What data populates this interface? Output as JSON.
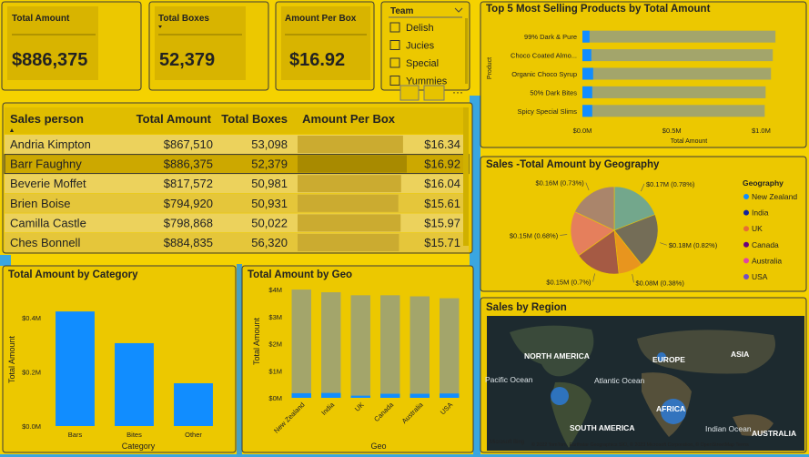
{
  "cards": [
    {
      "label": "Total Amount",
      "value": "$886,375"
    },
    {
      "label": "Total Boxes",
      "value": "52,379"
    },
    {
      "label": "Amount Per Box",
      "value": "$16.92"
    }
  ],
  "slicer": {
    "title": "Team",
    "items": [
      "Delish",
      "Jucies",
      "Special",
      "Yummies"
    ]
  },
  "table": {
    "columns": [
      "Sales person",
      "Total Amount",
      "Total Boxes",
      "Amount Per Box"
    ],
    "rows": [
      [
        "Andria Kimpton",
        "$867,510",
        "53,098",
        "$16.34"
      ],
      [
        "Barr Faughny",
        "$886,375",
        "52,379",
        "$16.92"
      ],
      [
        "Beverie Moffet",
        "$817,572",
        "50,981",
        "$16.04"
      ],
      [
        "Brien Boise",
        "$794,920",
        "50,931",
        "$15.61"
      ],
      [
        "Camilla Castle",
        "$798,868",
        "50,022",
        "$15.97"
      ],
      [
        "Ches Bonnell",
        "$884,835",
        "56,320",
        "$15.71"
      ]
    ],
    "selected_row": 1
  },
  "chart_data": [
    {
      "type": "bar",
      "horizontal": true,
      "title": "Top 5 Most Selling Products by Total Amount",
      "categories": [
        "99% Dark & Pure",
        "Choco Coated Almo...",
        "Organic Choco Syrup",
        "50% Dark Bites",
        "Spicy Special Slims"
      ],
      "series": [
        {
          "color": "#a3a56b",
          "values": [
            1080000,
            1065000,
            1055000,
            1025000,
            1020000
          ]
        },
        {
          "color": "#118dff",
          "values": [
            40000,
            50000,
            60000,
            55000,
            55000
          ]
        }
      ],
      "xlim": [
        0,
        1120000
      ],
      "xticks": [
        {
          "value": 0,
          "label": "$0.0M"
        },
        {
          "value": 500000,
          "label": "$0.5M"
        },
        {
          "value": 1000000,
          "label": "$1.0M"
        }
      ],
      "xlabel": "Total Amount",
      "ylabel": "Product"
    },
    {
      "type": "pie",
      "title": "Sales -Total Amount by Geography",
      "legend_title": "Geography",
      "categories": [
        "New Zealand",
        "India",
        "UK",
        "Canada",
        "Australia",
        "USA"
      ],
      "values": [
        170000,
        180000,
        80000,
        150000,
        150000,
        160000
      ],
      "value_labels": [
        "$0.17M (0.78%)",
        "$0.18M (0.82%)",
        "$0.08M (0.38%)",
        "$0.15M (0.7%)",
        "$0.15M (0.68%)",
        "$0.16M (0.73%)"
      ],
      "colors": [
        "#118dff",
        "#12239e",
        "#e66c37",
        "#6b007b",
        "#e044a7",
        "#744ec2"
      ]
    },
    {
      "type": "bar",
      "title": "Total Amount by Category",
      "categories": [
        "Bars",
        "Bites",
        "Other"
      ],
      "series": [
        {
          "color": "#118dff",
          "values": [
            423000,
            306000,
            158000
          ]
        }
      ],
      "ylim": [
        0,
        447000
      ],
      "yticks": [
        {
          "value": 0,
          "label": "$0.0M"
        },
        {
          "value": 200000,
          "label": "$0.2M"
        },
        {
          "value": 400000,
          "label": "$0.4M"
        }
      ],
      "xlabel": "Category",
      "ylabel": "Total Amount"
    },
    {
      "type": "bar",
      "rotate_labels": true,
      "title": "Total Amount by Geo",
      "categories": [
        "New Zealand",
        "India",
        "UK",
        "Canada",
        "Australia",
        "USA"
      ],
      "series": [
        {
          "color": "#a3a56b",
          "values": [
            4000000,
            3900000,
            3790000,
            3790000,
            3750000,
            3680000
          ]
        },
        {
          "color": "#118dff",
          "values": [
            170000,
            180000,
            80000,
            150000,
            150000,
            160000
          ]
        }
      ],
      "ylim": [
        0,
        4070000
      ],
      "yticks": [
        {
          "value": 0,
          "label": "$0M"
        },
        {
          "value": 1000000,
          "label": "$1M"
        },
        {
          "value": 2000000,
          "label": "$2M"
        },
        {
          "value": 3000000,
          "label": "$3M"
        },
        {
          "value": 4000000,
          "label": "$4M"
        }
      ],
      "xlabel": "Geo",
      "ylabel": "Total Amount"
    }
  ],
  "map": {
    "title": "Sales by Region",
    "labels": [
      "NORTH AMERICA",
      "EUROPE",
      "ASIA",
      "Pacific Ocean",
      "Atlantic Ocean",
      "SOUTH AMERICA",
      "AFRICA",
      "Indian Ocean",
      "AUSTRALIA"
    ],
    "logo": "Microsoft Bing",
    "copyright": "© 2022 TomTom, Earthstar Geographics SIO, © 2023 Microsoft Corporation, © OpenStreetMap  Terms"
  }
}
